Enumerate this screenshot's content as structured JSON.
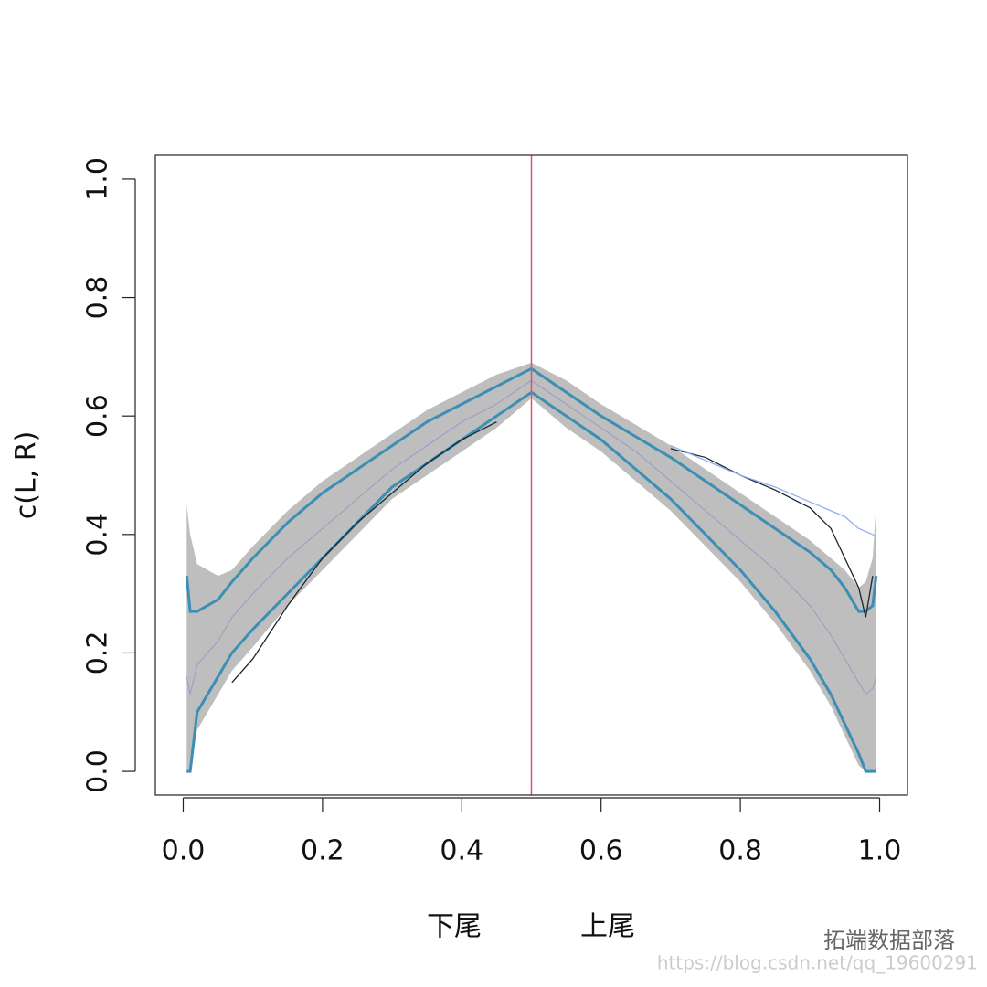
{
  "chart_data": {
    "type": "line",
    "ylabel": "c(L, R)",
    "xlabels": [
      "下尾",
      "上尾"
    ],
    "watermark": [
      "拓端数据部落",
      "https://blog.csdn.net/qq_19600291"
    ],
    "xlim": [
      -0.04,
      1.04
    ],
    "ylim": [
      -0.04,
      1.04
    ],
    "xticks": [
      {
        "value": 0,
        "label": "0.0"
      },
      0.2,
      0.4,
      0.6,
      0.8,
      {
        "value": 1,
        "label": "1.0"
      }
    ],
    "yticks": [
      {
        "value": 0,
        "label": "0.0"
      },
      0.2,
      0.4,
      0.6,
      0.8,
      {
        "value": 1,
        "label": "1.0"
      }
    ],
    "vline": {
      "value": 0.5,
      "color": "#e0506a"
    },
    "x": [
      0.005,
      0.01,
      0.02,
      0.05,
      0.07,
      0.1,
      0.15,
      0.2,
      0.25,
      0.3,
      0.35,
      0.4,
      0.45,
      0.5,
      0.55,
      0.6,
      0.65,
      0.7,
      0.75,
      0.8,
      0.85,
      0.9,
      0.93,
      0.95,
      0.97,
      0.98,
      0.99,
      0.995
    ],
    "band": {
      "color": "#bebebe",
      "high": [
        0.45,
        0.4,
        0.35,
        0.33,
        0.34,
        0.38,
        0.44,
        0.49,
        0.53,
        0.57,
        0.61,
        0.64,
        0.67,
        0.69,
        0.66,
        0.62,
        0.585,
        0.55,
        0.51,
        0.47,
        0.43,
        0.39,
        0.36,
        0.34,
        0.31,
        0.32,
        0.36,
        0.45
      ],
      "low": [
        0,
        0,
        0.07,
        0.13,
        0.17,
        0.21,
        0.28,
        0.34,
        0.4,
        0.46,
        0.5,
        0.54,
        0.58,
        0.63,
        0.58,
        0.54,
        0.49,
        0.44,
        0.38,
        0.32,
        0.25,
        0.17,
        0.11,
        0.06,
        0.01,
        0,
        0,
        0
      ]
    },
    "series": [
      {
        "color": "#9a9ac8",
        "width": 1,
        "values": [
          0.16,
          0.13,
          0.18,
          0.22,
          0.26,
          0.3,
          0.36,
          0.41,
          0.46,
          0.51,
          0.55,
          0.59,
          0.62,
          0.66,
          0.62,
          0.58,
          0.54,
          0.49,
          0.44,
          0.39,
          0.34,
          0.28,
          0.23,
          0.19,
          0.15,
          0.13,
          0.14,
          0.16
        ]
      },
      {
        "color": "#3c8fb4",
        "width": 3,
        "values": [
          0.33,
          0.27,
          0.27,
          0.29,
          0.32,
          0.36,
          0.42,
          0.47,
          0.51,
          0.55,
          0.59,
          0.62,
          0.65,
          0.68,
          0.64,
          0.6,
          0.565,
          0.53,
          0.49,
          0.45,
          0.41,
          0.37,
          0.34,
          0.31,
          0.27,
          0.27,
          0.28,
          0.33
        ]
      },
      {
        "color": "#3c8fb4",
        "width": 3,
        "values": [
          0,
          0,
          0.1,
          0.16,
          0.2,
          0.24,
          0.3,
          0.36,
          0.42,
          0.48,
          0.52,
          0.56,
          0.6,
          0.64,
          0.6,
          0.56,
          0.51,
          0.46,
          0.4,
          0.34,
          0.27,
          0.19,
          0.13,
          0.08,
          0.03,
          0,
          0,
          0
        ]
      },
      {
        "color": "#1a2630",
        "width": 1.3,
        "values": [
          null,
          null,
          null,
          null,
          0.15,
          0.19,
          0.28,
          0.36,
          0.42,
          0.47,
          0.52,
          0.56,
          0.59,
          null,
          null,
          null,
          null,
          0.545,
          0.53,
          0.5,
          0.475,
          0.445,
          0.41,
          0.36,
          0.31,
          0.26,
          0.33,
          null
        ]
      },
      {
        "color": "#8fb0f0",
        "width": 1.3,
        "values": [
          null,
          null,
          null,
          null,
          null,
          null,
          null,
          null,
          null,
          null,
          null,
          null,
          null,
          null,
          null,
          null,
          null,
          0.55,
          0.525,
          0.5,
          0.48,
          0.455,
          0.44,
          0.43,
          0.41,
          0.405,
          0.4,
          0.395
        ]
      }
    ]
  }
}
